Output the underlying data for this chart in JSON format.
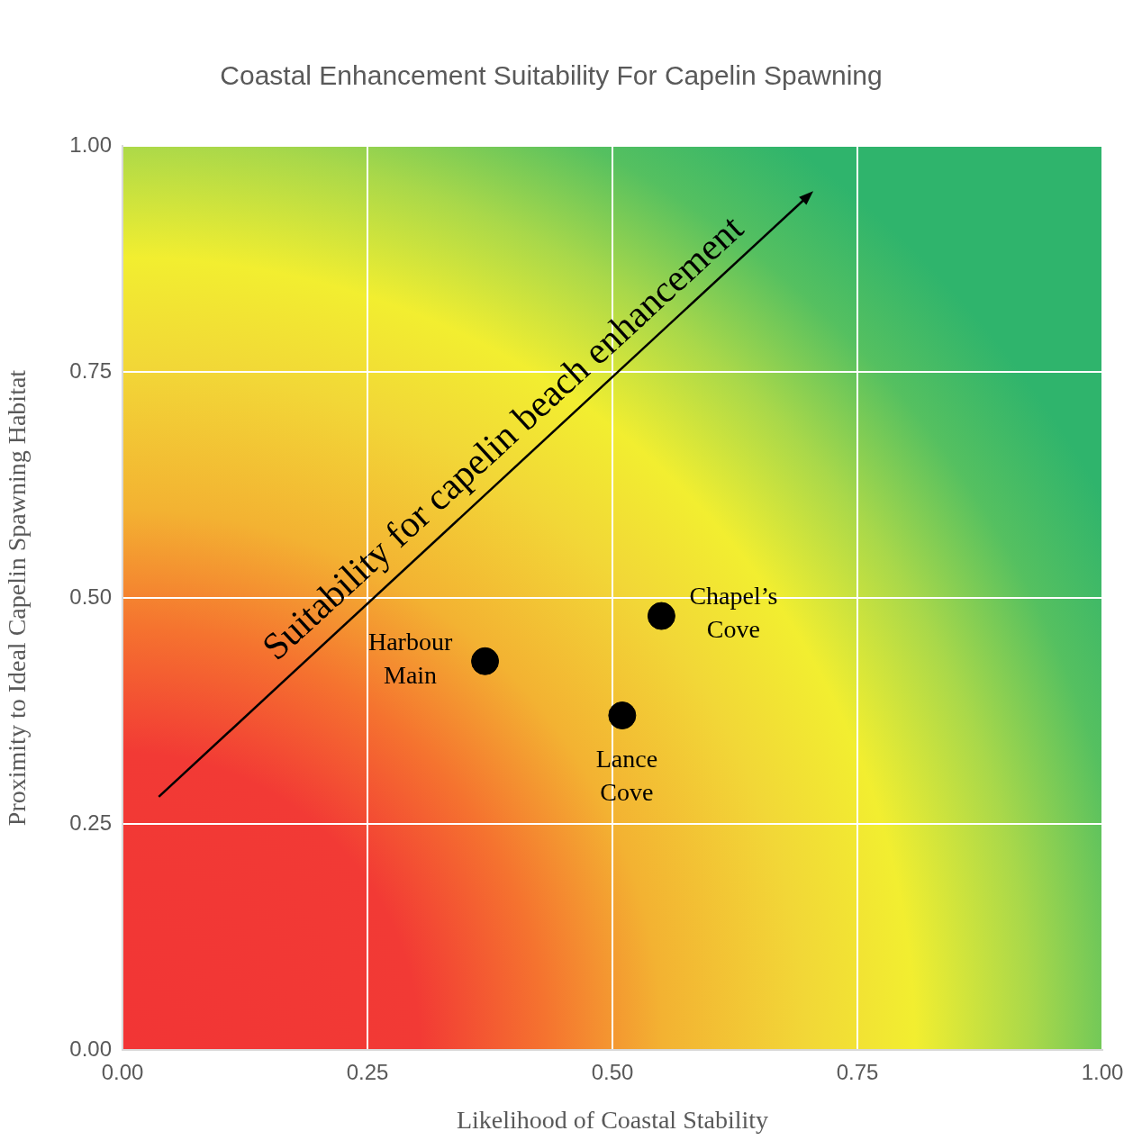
{
  "chart_data": {
    "type": "scatter",
    "title": "Coastal Enhancement Suitability For Capelin Spawning",
    "xlabel": "Likelihood of Coastal Stability",
    "ylabel": "Proximity to Ideal Capelin Spawning Habitat",
    "xlim": [
      0,
      1
    ],
    "ylim": [
      0,
      1
    ],
    "xticks": [
      {
        "value": 0,
        "label": "0.00"
      },
      {
        "value": 0.25,
        "label": "0.25"
      },
      {
        "value": 0.5,
        "label": "0.50"
      },
      {
        "value": 0.75,
        "label": "0.75"
      },
      {
        "value": 1,
        "label": "1.00"
      }
    ],
    "yticks": [
      {
        "value": 0,
        "label": "0.00"
      },
      {
        "value": 0.25,
        "label": "0.25"
      },
      {
        "value": 0.5,
        "label": "0.50"
      },
      {
        "value": 0.75,
        "label": "0.75"
      },
      {
        "value": 1,
        "label": "1.00"
      }
    ],
    "series": [
      {
        "name": "Harbour Main",
        "color": "#000000",
        "x": [
          0.37
        ],
        "values": [
          0.43
        ]
      },
      {
        "name": "Lance Cove",
        "color": "#000000",
        "x": [
          0.51
        ],
        "values": [
          0.37
        ]
      },
      {
        "name": "Chapel’s Cove",
        "color": "#000000",
        "x": [
          0.55
        ],
        "values": [
          0.48
        ]
      }
    ],
    "annotations": [
      "Suitability for capelin beach enhancement"
    ],
    "grid": true,
    "legend": false,
    "marker": "circle"
  }
}
